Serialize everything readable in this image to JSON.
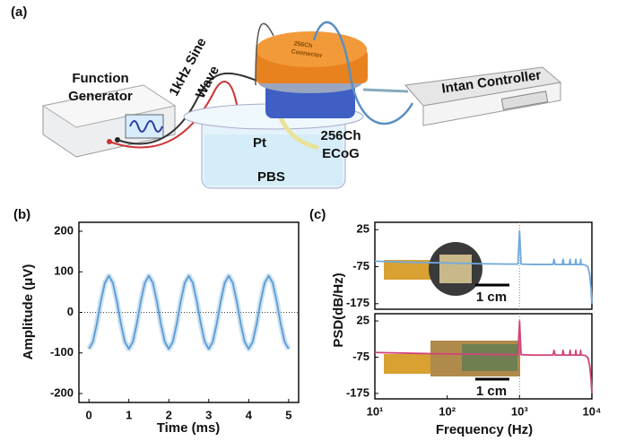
{
  "figure_a": {
    "panel_label": "(a)",
    "function_generator": [
      "Function",
      "Generator"
    ],
    "sine_wave": [
      "1kHz Sine",
      "Wave"
    ],
    "connector": [
      "256Ch",
      "Connector"
    ],
    "pt": "Pt",
    "pbs": "PBS",
    "ecog": [
      "256Ch",
      "ECoG"
    ],
    "controller": "Intan Controller"
  },
  "chart_data": [
    {
      "type": "line",
      "panel_label": "(b)",
      "xlabel": "Time (ms)",
      "ylabel": "Amplitude (μV)",
      "x": [
        0,
        0.1,
        0.2,
        0.3,
        0.4,
        0.5,
        0.6,
        0.7,
        0.8,
        0.9,
        1,
        1.1,
        1.2,
        1.3,
        1.4,
        1.5,
        1.6,
        1.7,
        1.8,
        1.9,
        2,
        2.1,
        2.2,
        2.3,
        2.4,
        2.5,
        2.6,
        2.7,
        2.8,
        2.9,
        3,
        3.1,
        3.2,
        3.3,
        3.4,
        3.5,
        3.6,
        3.7,
        3.8,
        3.9,
        4,
        4.1,
        4.2,
        4.3,
        4.4,
        4.5,
        4.6,
        4.7,
        4.8,
        4.9,
        5
      ],
      "series": [
        {
          "color": "#5b9bd5",
          "values": [
            -90,
            -72.8,
            -27.8,
            27.8,
            72.8,
            90,
            72.8,
            27.8,
            -27.8,
            -72.8,
            -90,
            -72.8,
            -27.8,
            27.8,
            72.8,
            90,
            72.8,
            27.8,
            -27.8,
            -72.8,
            -90,
            -72.8,
            -27.8,
            27.8,
            72.8,
            90,
            72.8,
            27.8,
            -27.8,
            -72.8,
            -90,
            -72.8,
            -27.8,
            27.8,
            72.8,
            90,
            72.8,
            27.8,
            -27.8,
            -72.8,
            -90,
            -72.8,
            -27.8,
            27.8,
            72.8,
            90,
            72.8,
            27.8,
            -27.8,
            -72.8,
            -90
          ]
        }
      ],
      "xlim": [
        -0.25,
        5.25
      ],
      "xticks": [
        0,
        1,
        2,
        3,
        4,
        5
      ],
      "ylim": [
        -222,
        222
      ],
      "yticks": [
        -200,
        -100,
        0,
        100,
        200
      ],
      "hline": 0
    },
    {
      "type": "line",
      "panel_label": "(c)",
      "ylabel": "PSD(dB/Hz)",
      "annotation": "1 cm",
      "log_x": true,
      "x": [
        10,
        30,
        100,
        300,
        700,
        950,
        1000,
        1050,
        1500,
        2900,
        3000,
        3100,
        3900,
        4000,
        4100,
        4900,
        5000,
        5100,
        5900,
        6000,
        6100,
        6900,
        7000,
        7100,
        8000,
        8800,
        9300,
        9700,
        10000
      ],
      "series": [
        {
          "color": "#6fa8dc",
          "values": [
            -60,
            -63,
            -65,
            -67,
            -68,
            -68,
            22,
            -68,
            -69,
            -69,
            -55,
            -69,
            -69,
            -55,
            -69,
            -69,
            -55,
            -69,
            -69,
            -55,
            -69,
            -69,
            -55,
            -69,
            -70,
            -75,
            -95,
            -130,
            -175
          ]
        }
      ],
      "xlim": [
        10,
        10000
      ],
      "ylim": [
        -190,
        45
      ],
      "yticks": [
        25,
        -75,
        -175
      ],
      "vline": 1000
    },
    {
      "type": "line",
      "xlabel": "Frequency (Hz)",
      "annotation": "1 cm",
      "log_x": true,
      "x": [
        10,
        30,
        100,
        300,
        700,
        950,
        1000,
        1050,
        1500,
        2900,
        3000,
        3100,
        3900,
        4000,
        4100,
        4900,
        5000,
        5100,
        5900,
        6000,
        6100,
        6900,
        7000,
        7100,
        8000,
        8800,
        9300,
        9700,
        10000
      ],
      "series": [
        {
          "color": "#d0457a",
          "values": [
            -62,
            -64,
            -66,
            -67,
            -68,
            -68,
            25,
            -68,
            -69,
            -69,
            -56,
            -69,
            -69,
            -56,
            -69,
            -69,
            -56,
            -69,
            -69,
            -56,
            -69,
            -69,
            -56,
            -69,
            -70,
            -76,
            -97,
            -132,
            -175
          ]
        }
      ],
      "xlim": [
        10,
        10000
      ],
      "ylim": [
        -190,
        45
      ],
      "yticks": [
        25,
        -75,
        -175
      ],
      "xticks": [
        {
          "value": 10,
          "label": "10¹"
        },
        {
          "value": 100,
          "label": "10²"
        },
        {
          "value": 1000,
          "label": "10³"
        },
        {
          "value": 10000,
          "label": "10⁴"
        }
      ],
      "vline": 1000
    }
  ]
}
